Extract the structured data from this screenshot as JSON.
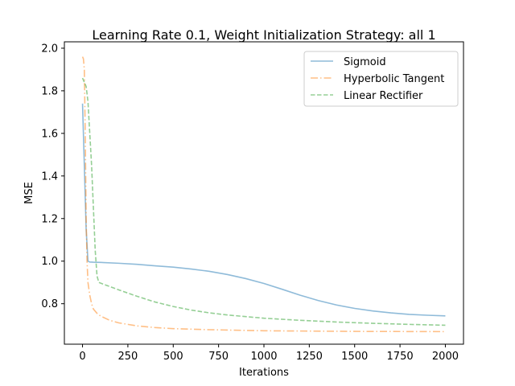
{
  "chart_data": {
    "type": "line",
    "title": "Learning Rate 0.1, Weight Initialization Strategy: all 1",
    "xlabel": "Iterations",
    "ylabel": "MSE",
    "xlim": [
      -100,
      2100
    ],
    "ylim": [
      0.61,
      2.03
    ],
    "xticks": [
      0,
      250,
      500,
      750,
      1000,
      1250,
      1500,
      1750,
      2000
    ],
    "yticks": [
      0.8,
      1.0,
      1.2,
      1.4,
      1.6,
      1.8,
      2.0
    ],
    "xtick_labels": [
      "0",
      "250",
      "500",
      "750",
      "1000",
      "1250",
      "1500",
      "1750",
      "2000"
    ],
    "ytick_labels": [
      "0.8",
      "1.0",
      "1.2",
      "1.4",
      "1.6",
      "1.8",
      "2.0"
    ],
    "grid": false,
    "legend_position": "top-right",
    "series": [
      {
        "name": "Sigmoid",
        "color": "#1f77b4",
        "dash": "solid",
        "x": [
          0,
          10,
          20,
          30,
          40,
          60,
          100,
          200,
          300,
          400,
          500,
          600,
          700,
          800,
          900,
          1000,
          1100,
          1200,
          1300,
          1400,
          1500,
          1600,
          1700,
          1800,
          1900,
          2000
        ],
        "y": [
          1.74,
          1.45,
          1.15,
          1.0,
          0.996,
          0.995,
          0.994,
          0.99,
          0.985,
          0.978,
          0.972,
          0.963,
          0.952,
          0.937,
          0.918,
          0.895,
          0.868,
          0.84,
          0.815,
          0.794,
          0.778,
          0.766,
          0.757,
          0.75,
          0.746,
          0.743
        ]
      },
      {
        "name": "Hyperbolic Tangent",
        "color": "#ff7f0e",
        "dash": "dashdot",
        "x": [
          0,
          5,
          10,
          15,
          20,
          25,
          30,
          40,
          50,
          60,
          80,
          100,
          150,
          200,
          300,
          400,
          500,
          700,
          1000,
          1500,
          2000
        ],
        "y": [
          1.96,
          1.95,
          1.9,
          1.6,
          1.2,
          1.0,
          0.9,
          0.84,
          0.8,
          0.775,
          0.755,
          0.742,
          0.722,
          0.71,
          0.696,
          0.688,
          0.683,
          0.678,
          0.673,
          0.67,
          0.669
        ]
      },
      {
        "name": "Linear Rectifier",
        "color": "#2ca02c",
        "dash": "dashed",
        "x": [
          0,
          20,
          30,
          40,
          50,
          60,
          70,
          80,
          90,
          120,
          200,
          300,
          400,
          500,
          600,
          700,
          800,
          1000,
          1200,
          1400,
          1600,
          1800,
          2000
        ],
        "y": [
          1.86,
          1.82,
          1.75,
          1.6,
          1.45,
          1.25,
          1.05,
          0.93,
          0.9,
          0.89,
          0.865,
          0.835,
          0.808,
          0.787,
          0.77,
          0.757,
          0.747,
          0.732,
          0.722,
          0.714,
          0.708,
          0.703,
          0.699
        ]
      }
    ]
  }
}
